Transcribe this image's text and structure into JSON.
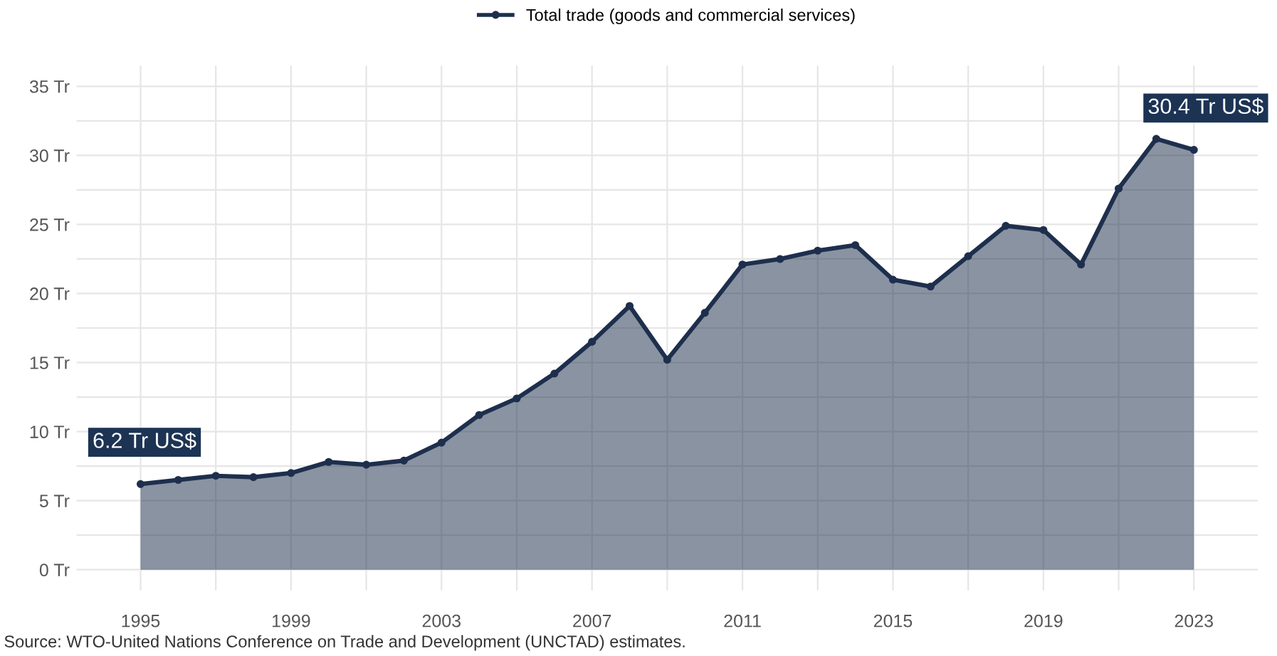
{
  "chart_data": {
    "type": "area",
    "x": [
      1995,
      1996,
      1997,
      1998,
      1999,
      2000,
      2001,
      2002,
      2003,
      2004,
      2005,
      2006,
      2007,
      2008,
      2009,
      2010,
      2011,
      2012,
      2013,
      2014,
      2015,
      2016,
      2017,
      2018,
      2019,
      2020,
      2021,
      2022,
      2023
    ],
    "series": [
      {
        "name": "Total trade (goods and commercial services)",
        "color": "#1e2f4d",
        "values": [
          6.2,
          6.5,
          6.8,
          6.7,
          7.0,
          7.8,
          7.6,
          7.9,
          9.2,
          11.2,
          12.4,
          14.2,
          16.5,
          19.1,
          15.2,
          18.6,
          22.1,
          22.5,
          23.1,
          23.5,
          21.0,
          20.5,
          22.7,
          24.9,
          24.6,
          22.1,
          27.6,
          31.2,
          30.4
        ]
      }
    ],
    "xlim": [
      1993.3,
      2024.7
    ],
    "xticks": [
      1995,
      {
        "value": 1997,
        "label": null
      },
      1999,
      {
        "value": 2001,
        "label": null
      },
      2003,
      {
        "value": 2005,
        "label": null
      },
      2007,
      {
        "value": 2009,
        "label": null
      },
      2011,
      {
        "value": 2013,
        "label": null
      },
      2015,
      {
        "value": 2017,
        "label": null
      },
      2019,
      {
        "value": 2021,
        "label": null
      },
      2023
    ],
    "ylim": [
      -1.5,
      36.5
    ],
    "yticks": [
      {
        "value": 0,
        "label": "0 Tr"
      },
      {
        "value": 2.5,
        "label": null
      },
      {
        "value": 5,
        "label": "5 Tr"
      },
      {
        "value": 7.5,
        "label": null
      },
      {
        "value": 10,
        "label": "10 Tr"
      },
      {
        "value": 12.5,
        "label": null
      },
      {
        "value": 15,
        "label": "15 Tr"
      },
      {
        "value": 17.5,
        "label": null
      },
      {
        "value": 20,
        "label": "20 Tr"
      },
      {
        "value": 22.5,
        "label": null
      },
      {
        "value": 25,
        "label": "25 Tr"
      },
      {
        "value": 27.5,
        "label": null
      },
      {
        "value": 30,
        "label": "30 Tr"
      },
      {
        "value": 32.5,
        "label": null
      },
      {
        "value": 35,
        "label": "35 Tr"
      }
    ],
    "grid": true,
    "legend": "top",
    "marker": "circle",
    "line_style": "solid",
    "annotations": [
      {
        "text": "6.2 Tr US$",
        "x": 1995,
        "y": 6.2
      },
      {
        "text": "30.4 Tr US$",
        "x": 2023,
        "y": 30.4
      },
      "Source: WTO-United Nations Conference on Trade and Development (UNCTAD) estimates."
    ]
  }
}
